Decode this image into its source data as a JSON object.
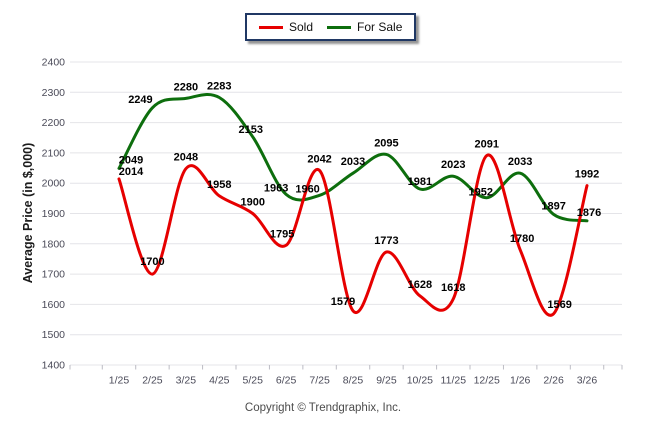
{
  "legend": {
    "items": [
      {
        "label": "Sold",
        "color": "#e60000"
      },
      {
        "label": "For Sale",
        "color": "#0d6e0d"
      }
    ]
  },
  "footer": {
    "copyright": "Copyright © Trendgraphix, Inc."
  },
  "chart_data": {
    "type": "line",
    "title": "",
    "xlabel": "",
    "ylabel": "Average Price (in $,000)",
    "ylim": [
      1400,
      2400
    ],
    "ytick_step": 100,
    "yticks": [
      1400,
      1500,
      1600,
      1700,
      1800,
      1900,
      2000,
      2100,
      2200,
      2300,
      2400
    ],
    "grid": "horizontal",
    "legend_position": "top-center",
    "categories": [
      "1/25",
      "2/25",
      "3/25",
      "4/25",
      "5/25",
      "6/25",
      "7/25",
      "8/25",
      "9/25",
      "10/25",
      "11/25",
      "12/25",
      "1/26",
      "2/26",
      "3/26"
    ],
    "series": [
      {
        "name": "Sold",
        "color": "#e60000",
        "values": [
          2014,
          1700,
          2048,
          1958,
          1900,
          1795,
          2042,
          1579,
          1773,
          1628,
          1618,
          2091,
          1780,
          1569,
          1992
        ]
      },
      {
        "name": "For Sale",
        "color": "#0d6e0d",
        "values": [
          2049,
          2249,
          2280,
          2283,
          2153,
          1963,
          1960,
          2033,
          2095,
          1981,
          2023,
          1952,
          2033,
          1897,
          1876
        ]
      }
    ]
  }
}
